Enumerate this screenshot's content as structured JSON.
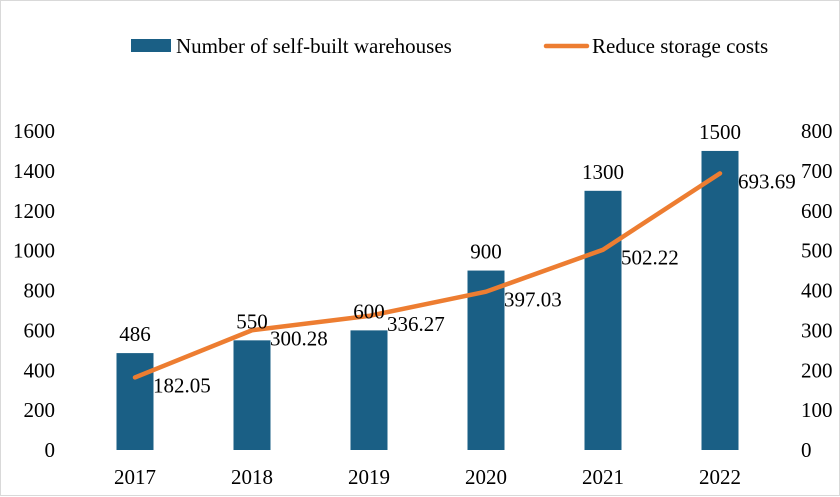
{
  "chart_data": {
    "type": "bar+line",
    "categories": [
      "2017",
      "2018",
      "2019",
      "2020",
      "2021",
      "2022"
    ],
    "series": [
      {
        "name": "Number of self-built warehouses",
        "type": "bar",
        "axis": "left",
        "color": "#1a5f85",
        "values": [
          486,
          550,
          600,
          900,
          1300,
          1500
        ],
        "labels": [
          "486",
          "550",
          "600",
          "900",
          "1300",
          "1500"
        ]
      },
      {
        "name": "Reduce storage costs",
        "type": "line",
        "axis": "right",
        "color": "#ed7d31",
        "values": [
          182.05,
          300.28,
          336.27,
          397.03,
          502.22,
          693.69
        ],
        "labels": [
          "182.05",
          "300.28",
          "336.27",
          "397.03",
          "502.22",
          "693.69"
        ]
      }
    ],
    "y_left": {
      "min": 0,
      "max": 1600,
      "ticks": [
        "0",
        "200",
        "400",
        "600",
        "800",
        "1000",
        "1200",
        "1400",
        "1600"
      ]
    },
    "y_right": {
      "min": 0,
      "max": 800,
      "ticks": [
        "0",
        "100",
        "200",
        "300",
        "400",
        "500",
        "600",
        "700",
        "800"
      ]
    },
    "legend": {
      "position": "top",
      "items": [
        "Number of self-built warehouses",
        "Reduce storage costs"
      ]
    },
    "grid": false
  }
}
